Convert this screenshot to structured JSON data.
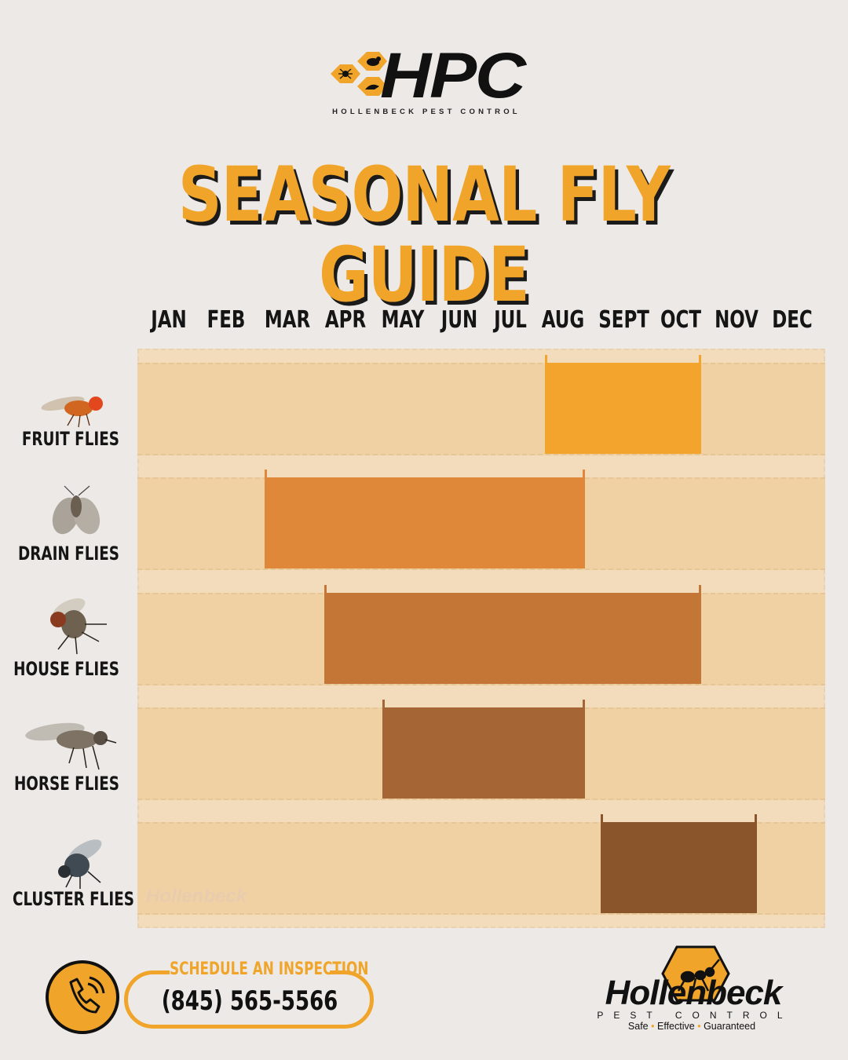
{
  "header": {
    "logo_text": "HPC",
    "logo_subtitle": "HOLLENBECK PEST CONTROL",
    "logo_icon": "honeycomb-pest-icon"
  },
  "chart_data": {
    "type": "bar",
    "title": "SEASONAL FLY GUIDE",
    "months": [
      "JAN",
      "FEB",
      "MAR",
      "APR",
      "MAY",
      "JUN",
      "JUL",
      "AUG",
      "SEPT",
      "OCT",
      "NOV",
      "DEC"
    ],
    "series": [
      {
        "name": "FRUIT FLIES",
        "start_month": "AUG",
        "end_month": "OCT",
        "color": "#f2a42c",
        "icon": "fruit-fly-icon"
      },
      {
        "name": "DRAIN FLIES",
        "start_month": "MAR",
        "end_month": "AUG",
        "color": "#e0883a",
        "icon": "drain-fly-icon"
      },
      {
        "name": "HOUSE FLIES",
        "start_month": "APR",
        "end_month": "OCT",
        "color": "#c47637",
        "icon": "house-fly-icon"
      },
      {
        "name": "HORSE FLIES",
        "start_month": "MAY",
        "end_month": "AUG",
        "color": "#a56534",
        "icon": "horse-fly-icon"
      },
      {
        "name": "CLUSTER FLIES",
        "start_month": "SEPT",
        "end_month": "NOV",
        "color": "#8a552b",
        "icon": "cluster-fly-icon"
      }
    ],
    "watermark": "Hollenbeck"
  },
  "footer": {
    "cta_title": "SCHEDULE AN INSPECTION",
    "phone": "(845) 565-5566",
    "phone_icon": "phone-icon",
    "brand_name": "Hollenbeck",
    "brand_sub": "PEST CONTROL",
    "brand_tag_1": "Safe",
    "brand_tag_2": "Effective",
    "brand_tag_3": "Guaranteed",
    "brand_icon": "ant-hex-icon",
    "accent_color": "#f0a52a"
  }
}
